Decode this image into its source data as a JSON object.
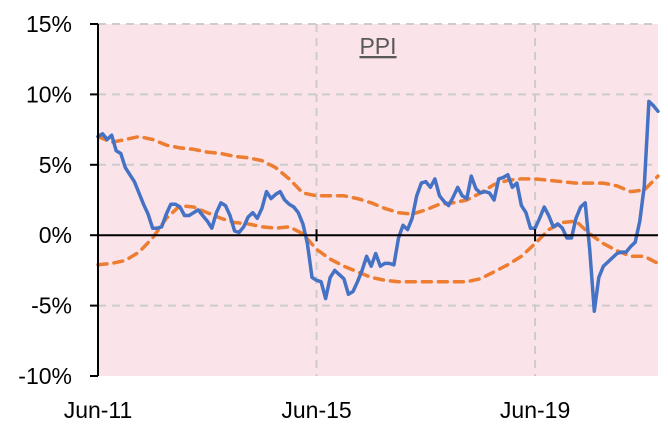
{
  "chart_data": {
    "type": "line",
    "title": "PPI",
    "xlabel": "",
    "ylabel": "",
    "x_ticks": [
      "Jun-11",
      "Jun-15",
      "Jun-19"
    ],
    "x_tick_dates": [
      "2011-06",
      "2015-06",
      "2019-06"
    ],
    "x_range": [
      "2011-06",
      "2021-09"
    ],
    "ylim": [
      -0.1,
      0.15
    ],
    "y_ticks": [
      {
        "value": -0.1,
        "label": "-10%"
      },
      {
        "value": -0.05,
        "label": "-5%"
      },
      {
        "value": 0.0,
        "label": "0%"
      },
      {
        "value": 0.05,
        "label": "5%"
      },
      {
        "value": 0.1,
        "label": "10%"
      },
      {
        "value": 0.15,
        "label": "15%"
      }
    ],
    "grid": true,
    "legend": "none",
    "colors": {
      "background": "#fbe3ea",
      "ppi": "#4472c4",
      "bands": "#ed7d31",
      "grid": "#cccccc",
      "axis": "#000000",
      "title": "#595959"
    },
    "series": [
      {
        "style": "solid",
        "color": "#4472c4",
        "points": [
          [
            "2011-06",
            0.07
          ],
          [
            "2011-07",
            0.072
          ],
          [
            "2011-08",
            0.068
          ],
          [
            "2011-09",
            0.071
          ],
          [
            "2011-10",
            0.06
          ],
          [
            "2011-11",
            0.058
          ],
          [
            "2011-12",
            0.048
          ],
          [
            "2012-01",
            0.043
          ],
          [
            "2012-02",
            0.038
          ],
          [
            "2012-03",
            0.03
          ],
          [
            "2012-04",
            0.022
          ],
          [
            "2012-05",
            0.015
          ],
          [
            "2012-06",
            0.005
          ],
          [
            "2012-07",
            0.005
          ],
          [
            "2012-08",
            0.006
          ],
          [
            "2012-09",
            0.015
          ],
          [
            "2012-10",
            0.022
          ],
          [
            "2012-11",
            0.022
          ],
          [
            "2012-12",
            0.02
          ],
          [
            "2013-01",
            0.014
          ],
          [
            "2013-02",
            0.014
          ],
          [
            "2013-03",
            0.016
          ],
          [
            "2013-04",
            0.018
          ],
          [
            "2013-05",
            0.014
          ],
          [
            "2013-06",
            0.01
          ],
          [
            "2013-07",
            0.005
          ],
          [
            "2013-08",
            0.016
          ],
          [
            "2013-09",
            0.023
          ],
          [
            "2013-10",
            0.021
          ],
          [
            "2013-11",
            0.014
          ],
          [
            "2013-12",
            0.003
          ],
          [
            "2014-01",
            0.002
          ],
          [
            "2014-02",
            0.006
          ],
          [
            "2014-03",
            0.013
          ],
          [
            "2014-04",
            0.016
          ],
          [
            "2014-05",
            0.012
          ],
          [
            "2014-06",
            0.019
          ],
          [
            "2014-07",
            0.031
          ],
          [
            "2014-08",
            0.026
          ],
          [
            "2014-09",
            0.029
          ],
          [
            "2014-10",
            0.031
          ],
          [
            "2014-11",
            0.025
          ],
          [
            "2014-12",
            0.022
          ],
          [
            "2015-01",
            0.02
          ],
          [
            "2015-02",
            0.016
          ],
          [
            "2015-03",
            0.008
          ],
          [
            "2015-04",
            -0.006
          ],
          [
            "2015-05",
            -0.03
          ],
          [
            "2015-06",
            -0.032
          ],
          [
            "2015-07",
            -0.033
          ],
          [
            "2015-08",
            -0.045
          ],
          [
            "2015-09",
            -0.03
          ],
          [
            "2015-10",
            -0.025
          ],
          [
            "2015-11",
            -0.028
          ],
          [
            "2015-12",
            -0.031
          ],
          [
            "2016-01",
            -0.042
          ],
          [
            "2016-02",
            -0.04
          ],
          [
            "2016-03",
            -0.033
          ],
          [
            "2016-04",
            -0.025
          ],
          [
            "2016-05",
            -0.015
          ],
          [
            "2016-06",
            -0.022
          ],
          [
            "2016-07",
            -0.013
          ],
          [
            "2016-08",
            -0.022
          ],
          [
            "2016-09",
            -0.02
          ],
          [
            "2016-10",
            -0.02
          ],
          [
            "2016-11",
            -0.021
          ],
          [
            "2016-12",
            -0.002
          ],
          [
            "2017-01",
            0.007
          ],
          [
            "2017-02",
            0.004
          ],
          [
            "2017-03",
            0.012
          ],
          [
            "2017-04",
            0.028
          ],
          [
            "2017-05",
            0.037
          ],
          [
            "2017-06",
            0.038
          ],
          [
            "2017-07",
            0.034
          ],
          [
            "2017-08",
            0.04
          ],
          [
            "2017-09",
            0.028
          ],
          [
            "2017-10",
            0.024
          ],
          [
            "2017-11",
            0.021
          ],
          [
            "2017-12",
            0.027
          ],
          [
            "2018-01",
            0.034
          ],
          [
            "2018-02",
            0.028
          ],
          [
            "2018-03",
            0.026
          ],
          [
            "2018-04",
            0.042
          ],
          [
            "2018-05",
            0.033
          ],
          [
            "2018-06",
            0.03
          ],
          [
            "2018-07",
            0.031
          ],
          [
            "2018-08",
            0.03
          ],
          [
            "2018-09",
            0.025
          ],
          [
            "2018-10",
            0.04
          ],
          [
            "2018-11",
            0.041
          ],
          [
            "2018-12",
            0.043
          ],
          [
            "2019-01",
            0.034
          ],
          [
            "2019-02",
            0.037
          ],
          [
            "2019-03",
            0.021
          ],
          [
            "2019-04",
            0.016
          ],
          [
            "2019-05",
            0.005
          ],
          [
            "2019-06",
            0.005
          ],
          [
            "2019-07",
            0.012
          ],
          [
            "2019-08",
            0.02
          ],
          [
            "2019-09",
            0.014
          ],
          [
            "2019-10",
            0.006
          ],
          [
            "2019-11",
            0.008
          ],
          [
            "2019-12",
            0.005
          ],
          [
            "2020-01",
            -0.002
          ],
          [
            "2020-02",
            -0.002
          ],
          [
            "2020-03",
            0.012
          ],
          [
            "2020-04",
            0.02
          ],
          [
            "2020-05",
            0.023
          ],
          [
            "2020-06",
            -0.01
          ],
          [
            "2020-07",
            -0.054
          ],
          [
            "2020-08",
            -0.03
          ],
          [
            "2020-09",
            -0.022
          ],
          [
            "2020-10",
            -0.019
          ],
          [
            "2020-11",
            -0.016
          ],
          [
            "2020-12",
            -0.013
          ],
          [
            "2021-01",
            -0.012
          ],
          [
            "2021-02",
            -0.012
          ],
          [
            "2021-03",
            -0.008
          ],
          [
            "2021-04",
            -0.005
          ],
          [
            "2021-05",
            0.01
          ],
          [
            "2021-06",
            0.035
          ],
          [
            "2021-07",
            0.095
          ],
          [
            "2021-08",
            0.092
          ],
          [
            "2021-09",
            0.088
          ]
        ]
      },
      {
        "style": "dashed",
        "color": "#ed7d31",
        "points": [
          [
            "2011-06",
            0.07
          ],
          [
            "2011-09",
            0.066
          ],
          [
            "2011-12",
            0.068
          ],
          [
            "2012-03",
            0.07
          ],
          [
            "2012-06",
            0.068
          ],
          [
            "2012-09",
            0.064
          ],
          [
            "2012-12",
            0.062
          ],
          [
            "2013-03",
            0.061
          ],
          [
            "2013-06",
            0.059
          ],
          [
            "2013-09",
            0.058
          ],
          [
            "2013-12",
            0.056
          ],
          [
            "2014-03",
            0.055
          ],
          [
            "2014-06",
            0.053
          ],
          [
            "2014-09",
            0.048
          ],
          [
            "2014-12",
            0.04
          ],
          [
            "2015-03",
            0.03
          ],
          [
            "2015-06",
            0.028
          ],
          [
            "2015-09",
            0.028
          ],
          [
            "2015-12",
            0.028
          ],
          [
            "2016-03",
            0.026
          ],
          [
            "2016-06",
            0.023
          ],
          [
            "2016-09",
            0.019
          ],
          [
            "2016-12",
            0.016
          ],
          [
            "2017-03",
            0.015
          ],
          [
            "2017-06",
            0.018
          ],
          [
            "2017-09",
            0.022
          ],
          [
            "2017-12",
            0.023
          ],
          [
            "2018-03",
            0.025
          ],
          [
            "2018-06",
            0.03
          ],
          [
            "2018-09",
            0.036
          ],
          [
            "2018-12",
            0.039
          ],
          [
            "2019-03",
            0.04
          ],
          [
            "2019-06",
            0.04
          ],
          [
            "2019-09",
            0.039
          ],
          [
            "2019-12",
            0.038
          ],
          [
            "2020-03",
            0.037
          ],
          [
            "2020-06",
            0.037
          ],
          [
            "2020-09",
            0.037
          ],
          [
            "2020-12",
            0.035
          ],
          [
            "2021-03",
            0.031
          ],
          [
            "2021-06",
            0.032
          ],
          [
            "2021-09",
            0.042
          ]
        ]
      },
      {
        "style": "dashed",
        "color": "#ed7d31",
        "points": [
          [
            "2011-06",
            -0.021
          ],
          [
            "2011-09",
            -0.02
          ],
          [
            "2011-12",
            -0.018
          ],
          [
            "2012-03",
            -0.012
          ],
          [
            "2012-06",
            -0.002
          ],
          [
            "2012-09",
            0.012
          ],
          [
            "2012-12",
            0.021
          ],
          [
            "2013-03",
            0.02
          ],
          [
            "2013-06",
            0.016
          ],
          [
            "2013-09",
            0.012
          ],
          [
            "2013-12",
            0.009
          ],
          [
            "2014-03",
            0.008
          ],
          [
            "2014-06",
            0.006
          ],
          [
            "2014-09",
            0.005
          ],
          [
            "2014-12",
            0.006
          ],
          [
            "2015-03",
            0.001
          ],
          [
            "2015-06",
            -0.01
          ],
          [
            "2015-09",
            -0.017
          ],
          [
            "2015-12",
            -0.022
          ],
          [
            "2016-03",
            -0.026
          ],
          [
            "2016-06",
            -0.03
          ],
          [
            "2016-09",
            -0.032
          ],
          [
            "2016-12",
            -0.033
          ],
          [
            "2017-03",
            -0.033
          ],
          [
            "2017-06",
            -0.033
          ],
          [
            "2017-09",
            -0.033
          ],
          [
            "2017-12",
            -0.033
          ],
          [
            "2018-03",
            -0.033
          ],
          [
            "2018-06",
            -0.031
          ],
          [
            "2018-09",
            -0.026
          ],
          [
            "2018-12",
            -0.021
          ],
          [
            "2019-03",
            -0.015
          ],
          [
            "2019-06",
            -0.006
          ],
          [
            "2019-09",
            0.004
          ],
          [
            "2019-12",
            0.009
          ],
          [
            "2020-03",
            0.01
          ],
          [
            "2020-06",
            0.001
          ],
          [
            "2020-09",
            -0.006
          ],
          [
            "2020-12",
            -0.011
          ],
          [
            "2021-03",
            -0.015
          ],
          [
            "2021-06",
            -0.015
          ],
          [
            "2021-09",
            -0.02
          ]
        ]
      }
    ]
  }
}
